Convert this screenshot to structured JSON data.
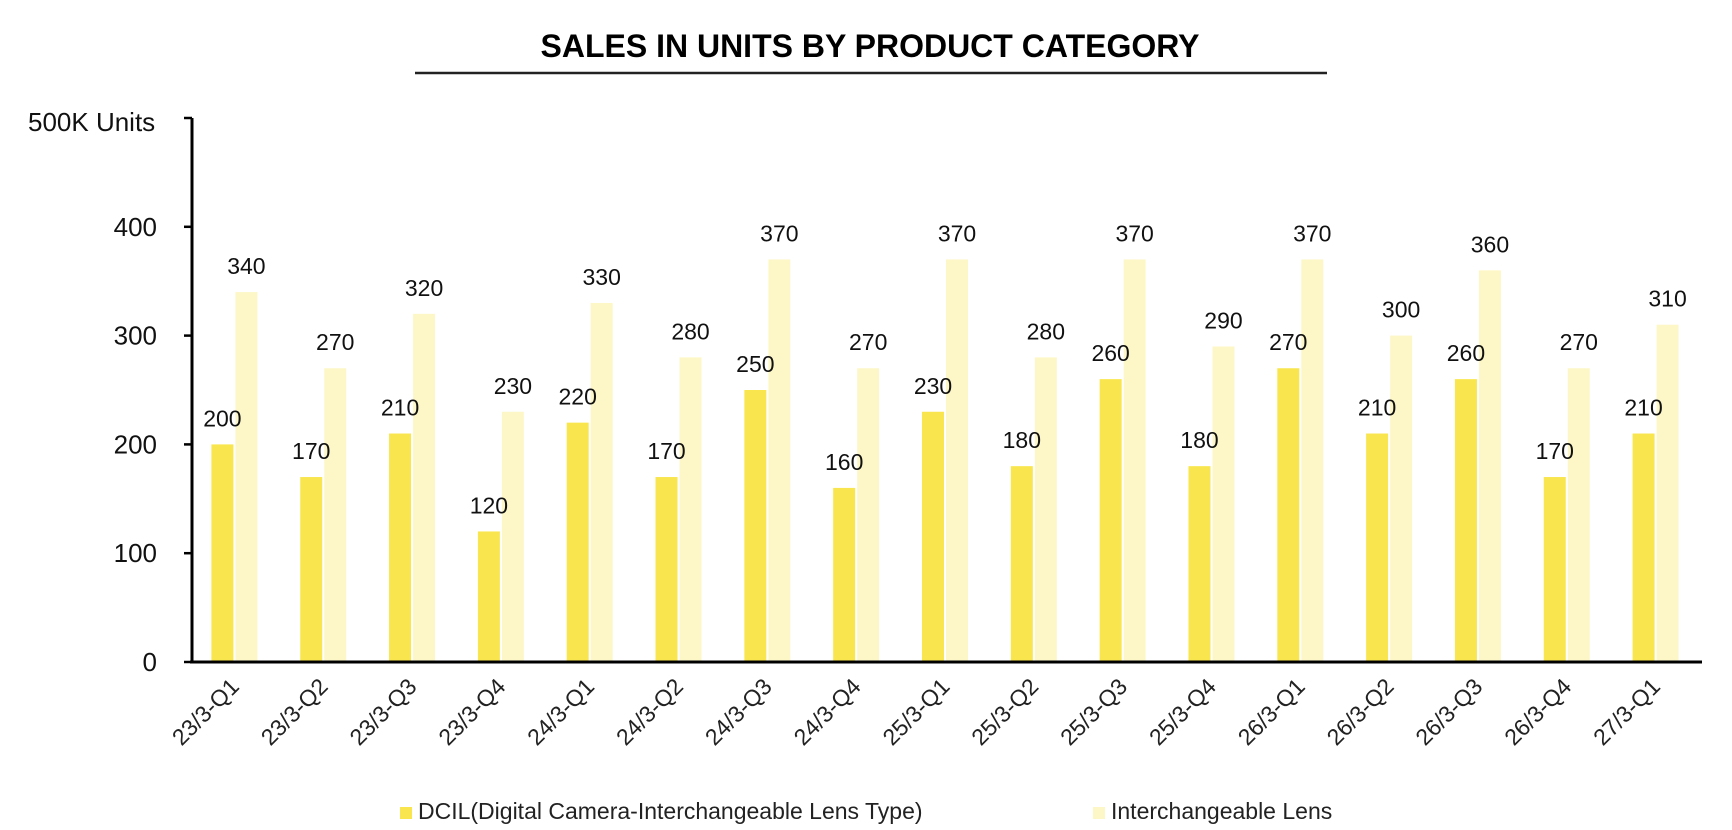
{
  "chart_data": {
    "type": "bar",
    "title": "SALES IN UNITS BY PRODUCT CATEGORY",
    "ylabel": "500K Units",
    "xlabel": "",
    "ylim": [
      0,
      500
    ],
    "yticks": [
      0,
      100,
      200,
      300,
      400
    ],
    "grid": false,
    "legend_position": "bottom",
    "categories": [
      "23/3-Q1",
      "23/3-Q2",
      "23/3-Q3",
      "23/3-Q4",
      "24/3-Q1",
      "24/3-Q2",
      "24/3-Q3",
      "24/3-Q4",
      "25/3-Q1",
      "25/3-Q2",
      "25/3-Q3",
      "25/3-Q4",
      "26/3-Q1",
      "26/3-Q2",
      "26/3-Q3",
      "26/3-Q4",
      "27/3-Q1"
    ],
    "series": [
      {
        "name": "DCIL(Digital Camera-Interchangeable Lens Type)",
        "color": "#F9E64E",
        "values": [
          200,
          170,
          210,
          120,
          220,
          170,
          250,
          160,
          230,
          180,
          260,
          180,
          270,
          210,
          260,
          170,
          210
        ]
      },
      {
        "name": "Interchangeable Lens",
        "color": "#FDF7C8",
        "values": [
          340,
          270,
          320,
          230,
          330,
          280,
          370,
          270,
          370,
          280,
          370,
          290,
          370,
          300,
          360,
          270,
          310
        ]
      }
    ]
  }
}
